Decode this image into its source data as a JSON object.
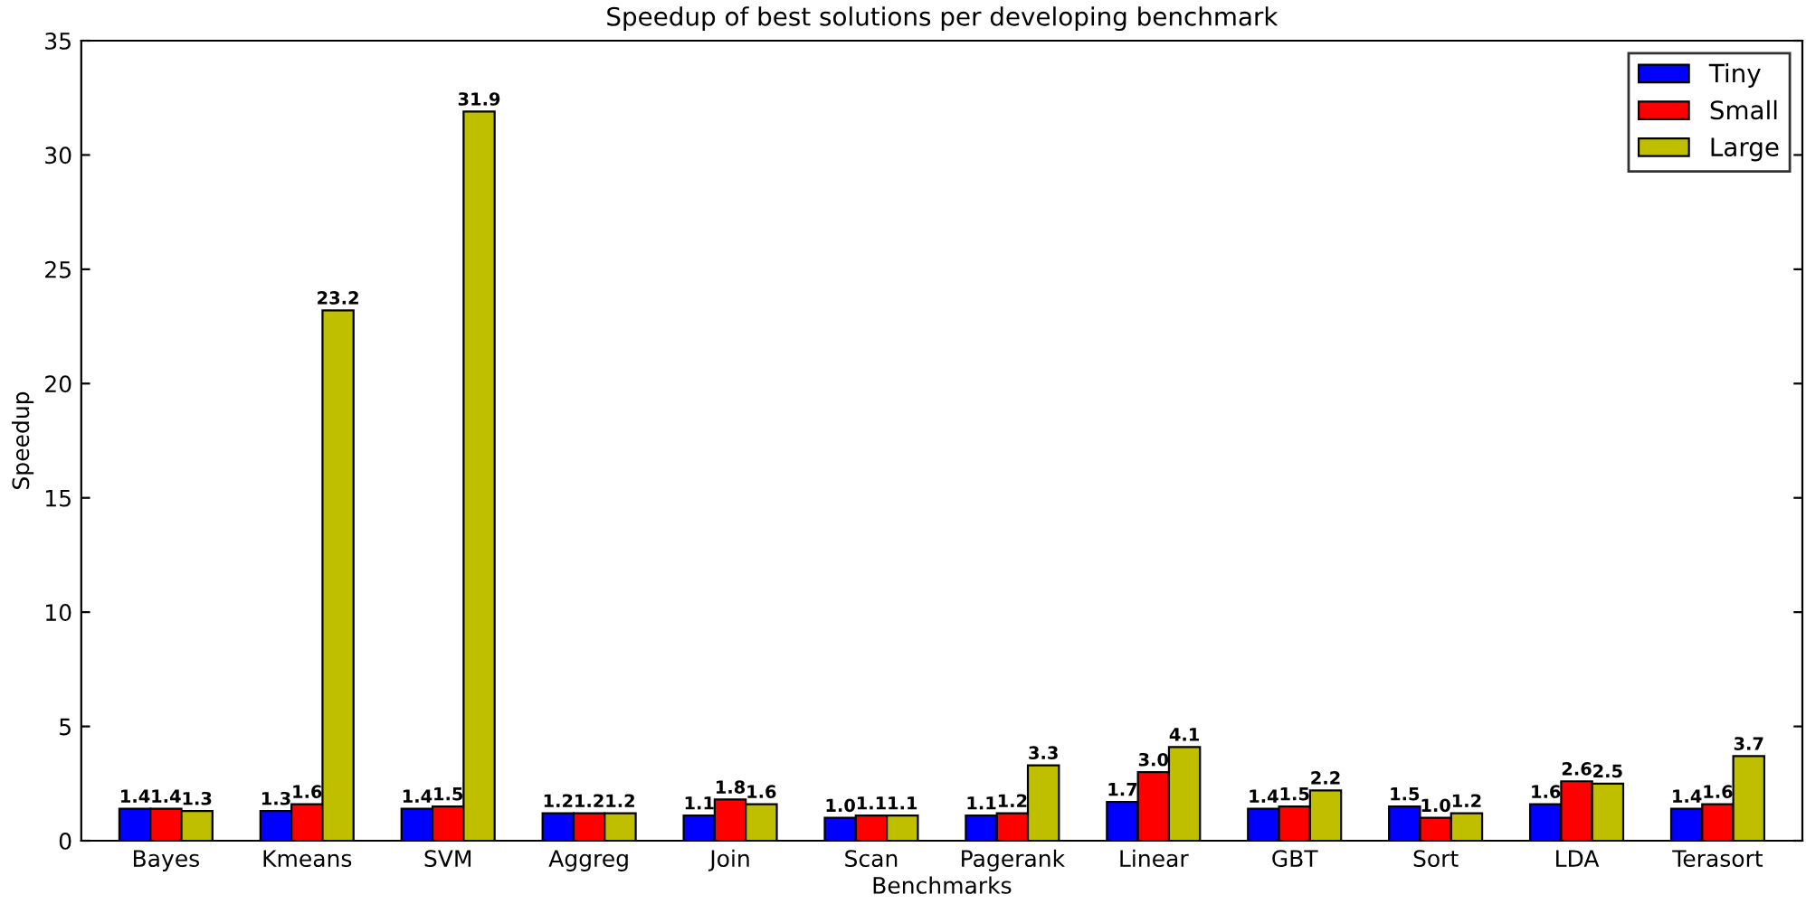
{
  "chart_data": {
    "type": "bar",
    "title": "Speedup of best solutions per developing benchmark",
    "xlabel": "Benchmarks",
    "ylabel": "Speedup",
    "categories": [
      "Bayes",
      "Kmeans",
      "SVM",
      "Aggreg",
      "Join",
      "Scan",
      "Pagerank",
      "Linear",
      "GBT",
      "Sort",
      "LDA",
      "Terasort"
    ],
    "series": [
      {
        "name": "Tiny",
        "color": "#0000ff",
        "values": [
          1.4,
          1.3,
          1.4,
          1.2,
          1.1,
          1.0,
          1.1,
          1.7,
          1.4,
          1.5,
          1.6,
          1.4
        ],
        "value_labels": [
          "1.4",
          "1.3",
          "1.4",
          "1.2",
          "1.1",
          "1.0",
          "1.1",
          "1.7",
          "1.4",
          "1.5",
          "1.6",
          "1.4"
        ]
      },
      {
        "name": "Small",
        "color": "#ff0000",
        "values": [
          1.4,
          1.6,
          1.5,
          1.2,
          1.8,
          1.1,
          1.2,
          3.0,
          1.5,
          1.0,
          2.6,
          1.6
        ],
        "value_labels": [
          "1.4",
          "1.6",
          "1.5",
          "1.2",
          "1.8",
          "1.1",
          "1.2",
          "3.0",
          "1.5",
          "1.0",
          "2.6",
          "1.6"
        ]
      },
      {
        "name": "Large",
        "color": "#bfbf00",
        "values": [
          1.3,
          23.2,
          31.9,
          1.2,
          1.6,
          1.1,
          3.3,
          4.1,
          2.2,
          1.2,
          2.5,
          3.7
        ],
        "value_labels": [
          "1.3",
          "23.2",
          "31.9",
          "1.2",
          "1.6",
          "1.1",
          "3.3",
          "4.1",
          "2.2",
          "1.2",
          "2.5",
          "3.7"
        ]
      }
    ],
    "ylim": [
      0,
      35
    ],
    "yticks": [
      0,
      5,
      10,
      15,
      20,
      25,
      30,
      35
    ],
    "grid": false,
    "legend": "top right"
  }
}
